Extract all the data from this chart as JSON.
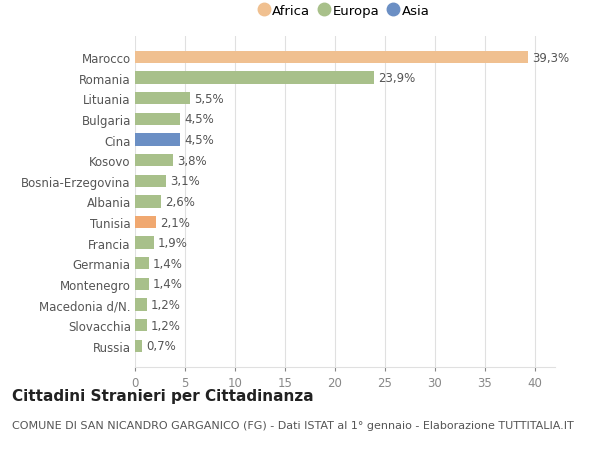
{
  "categories": [
    "Russia",
    "Slovacchia",
    "Macedonia d/N.",
    "Montenegro",
    "Germania",
    "Francia",
    "Tunisia",
    "Albania",
    "Bosnia-Erzegovina",
    "Kosovo",
    "Cina",
    "Bulgaria",
    "Lituania",
    "Romania",
    "Marocco"
  ],
  "values": [
    0.7,
    1.2,
    1.2,
    1.4,
    1.4,
    1.9,
    2.1,
    2.6,
    3.1,
    3.8,
    4.5,
    4.5,
    5.5,
    23.9,
    39.3
  ],
  "labels": [
    "0,7%",
    "1,2%",
    "1,2%",
    "1,4%",
    "1,4%",
    "1,9%",
    "2,1%",
    "2,6%",
    "3,1%",
    "3,8%",
    "4,5%",
    "4,5%",
    "5,5%",
    "23,9%",
    "39,3%"
  ],
  "colors": [
    "#a8c08a",
    "#a8c08a",
    "#a8c08a",
    "#a8c08a",
    "#a8c08a",
    "#a8c08a",
    "#f0a870",
    "#a8c08a",
    "#a8c08a",
    "#a8c08a",
    "#6b8fc4",
    "#a8c08a",
    "#a8c08a",
    "#a8c08a",
    "#f0c090"
  ],
  "legend": [
    {
      "label": "Africa",
      "color": "#f0c090"
    },
    {
      "label": "Europa",
      "color": "#a8c08a"
    },
    {
      "label": "Asia",
      "color": "#6b8fc4"
    }
  ],
  "title": "Cittadini Stranieri per Cittadinanza",
  "subtitle": "COMUNE DI SAN NICANDRO GARGANICO (FG) - Dati ISTAT al 1° gennaio - Elaborazione TUTTITALIA.IT",
  "xlim": [
    0,
    42
  ],
  "xticks": [
    0,
    5,
    10,
    15,
    20,
    25,
    30,
    35,
    40
  ],
  "background_color": "#ffffff",
  "grid_color": "#e0e0e0",
  "title_fontsize": 11,
  "subtitle_fontsize": 8,
  "label_fontsize": 8.5,
  "tick_fontsize": 8.5,
  "ylabel_fontsize": 8.5
}
